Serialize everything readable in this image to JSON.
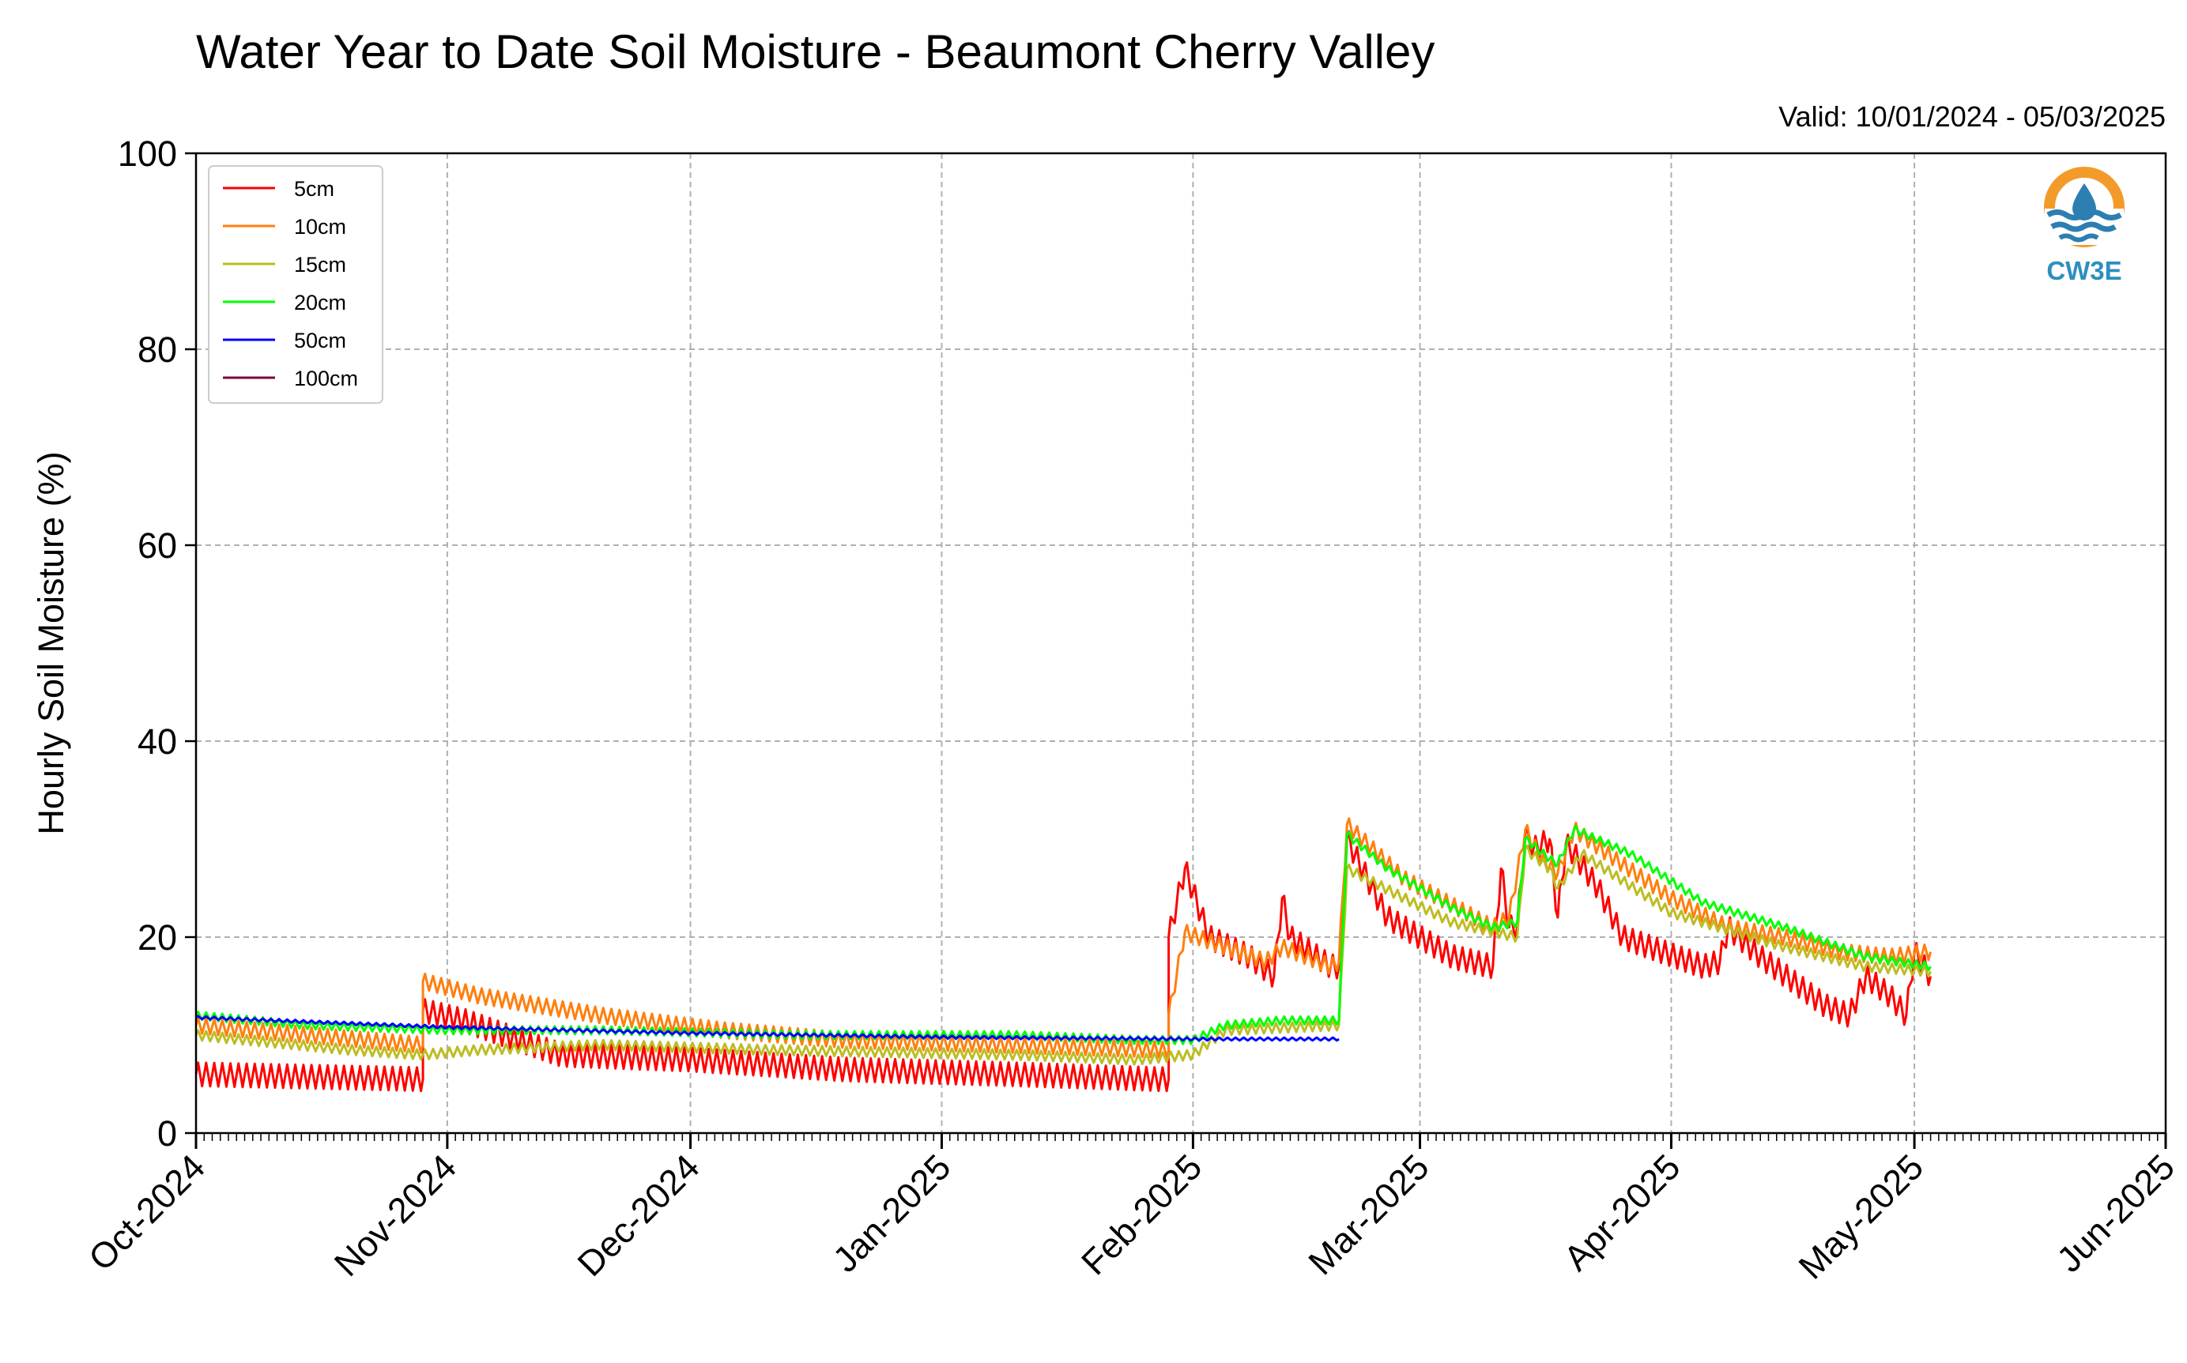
{
  "title": "Water Year to Date Soil Moisture - Beaumont Cherry Valley",
  "valid": "Valid: 10/01/2024 - 05/03/2025",
  "logo_text": "CW3E",
  "logo_colors": {
    "ring": "#f39b2a",
    "waves": "#2c7fb0",
    "text": "#2c8fbf"
  },
  "chart_data": {
    "type": "line",
    "title": "Water Year to Date Soil Moisture - Beaumont Cherry Valley",
    "ylabel": "Hourly Soil Moisture (%)",
    "xlabel": "",
    "ylim": [
      0,
      100
    ],
    "yticks": [
      0,
      20,
      40,
      60,
      80,
      100
    ],
    "xlim": [
      "2024-10-01",
      "2025-06-01"
    ],
    "xticks": [
      {
        "date": "2024-10-01",
        "label": "Oct-2024"
      },
      {
        "date": "2024-11-01",
        "label": "Nov-2024"
      },
      {
        "date": "2024-12-01",
        "label": "Dec-2024"
      },
      {
        "date": "2025-01-01",
        "label": "Jan-2025"
      },
      {
        "date": "2025-02-01",
        "label": "Feb-2025"
      },
      {
        "date": "2025-03-01",
        "label": "Mar-2025"
      },
      {
        "date": "2025-04-01",
        "label": "Apr-2025"
      },
      {
        "date": "2025-05-01",
        "label": "May-2025"
      },
      {
        "date": "2025-06-01",
        "label": "Jun-2025"
      }
    ],
    "grid": true,
    "legend_position": "top-left",
    "series": [
      {
        "name": "5cm",
        "color": "#ff0000",
        "diurnal_amplitude": 1.2,
        "points": [
          [
            "2024-10-01",
            6.0
          ],
          [
            "2024-10-29",
            5.5
          ],
          [
            "2024-10-29",
            12.5
          ],
          [
            "2024-11-03",
            11.5
          ],
          [
            "2024-11-15",
            8.0
          ],
          [
            "2024-12-01",
            7.5
          ],
          [
            "2024-12-20",
            6.5
          ],
          [
            "2025-01-10",
            6.0
          ],
          [
            "2025-01-28",
            5.5
          ],
          [
            "2025-01-29",
            5.5
          ],
          [
            "2025-01-29",
            20.0
          ],
          [
            "2025-01-31",
            27.0
          ],
          [
            "2025-02-03",
            20.0
          ],
          [
            "2025-02-08",
            18.0
          ],
          [
            "2025-02-11",
            16.0
          ],
          [
            "2025-02-12",
            24.0
          ],
          [
            "2025-02-13",
            20.0
          ],
          [
            "2025-02-18",
            17.0
          ],
          [
            "2025-02-19",
            17.0
          ],
          [
            "2025-02-20",
            30.0
          ],
          [
            "2025-02-25",
            22.0
          ],
          [
            "2025-03-05",
            18.0
          ],
          [
            "2025-03-10",
            17.0
          ],
          [
            "2025-03-11",
            27.0
          ],
          [
            "2025-03-12",
            21.0
          ],
          [
            "2025-03-13",
            21.0
          ],
          [
            "2025-03-14",
            30.5
          ],
          [
            "2025-03-15",
            29.0
          ],
          [
            "2025-03-17",
            30.0
          ],
          [
            "2025-03-18",
            22.0
          ],
          [
            "2025-03-19",
            29.5
          ],
          [
            "2025-03-20",
            28.5
          ],
          [
            "2025-03-23",
            25.0
          ],
          [
            "2025-03-26",
            20.0
          ],
          [
            "2025-04-05",
            17.0
          ],
          [
            "2025-04-07",
            17.5
          ],
          [
            "2025-04-08",
            21.0
          ],
          [
            "2025-04-12",
            18.0
          ],
          [
            "2025-04-20",
            13.0
          ],
          [
            "2025-04-23",
            12.0
          ],
          [
            "2025-04-25",
            16.0
          ],
          [
            "2025-04-28",
            14.0
          ],
          [
            "2025-04-30",
            12.0
          ],
          [
            "2025-05-01",
            18.5
          ],
          [
            "2025-05-03",
            16.0
          ]
        ]
      },
      {
        "name": "10cm",
        "color": "#ff7f0e",
        "diurnal_amplitude": 0.8,
        "points": [
          [
            "2024-10-01",
            11.0
          ],
          [
            "2024-10-29",
            9.0
          ],
          [
            "2024-10-29",
            15.5
          ],
          [
            "2024-11-05",
            14.0
          ],
          [
            "2024-11-20",
            12.0
          ],
          [
            "2024-12-05",
            10.5
          ],
          [
            "2024-12-20",
            9.5
          ],
          [
            "2025-01-10",
            9.0
          ],
          [
            "2025-01-29",
            8.5
          ],
          [
            "2025-01-29",
            12.0
          ],
          [
            "2025-01-31",
            20.5
          ],
          [
            "2025-02-05",
            19.0
          ],
          [
            "2025-02-10",
            17.5
          ],
          [
            "2025-02-12",
            19.0
          ],
          [
            "2025-02-18",
            17.0
          ],
          [
            "2025-02-19",
            17.5
          ],
          [
            "2025-02-20",
            31.5
          ],
          [
            "2025-02-27",
            26.0
          ],
          [
            "2025-03-10",
            21.0
          ],
          [
            "2025-03-12",
            22.0
          ],
          [
            "2025-03-14",
            31.0
          ],
          [
            "2025-03-16",
            28.0
          ],
          [
            "2025-03-18",
            26.5
          ],
          [
            "2025-03-20",
            31.0
          ],
          [
            "2025-03-25",
            28.0
          ],
          [
            "2025-04-01",
            24.0
          ],
          [
            "2025-04-08",
            21.0
          ],
          [
            "2025-04-15",
            20.0
          ],
          [
            "2025-04-22",
            18.5
          ],
          [
            "2025-04-28",
            18.0
          ],
          [
            "2025-05-03",
            18.5
          ]
        ]
      },
      {
        "name": "15cm",
        "color": "#bcbd22",
        "diurnal_amplitude": 0.5,
        "points": [
          [
            "2024-10-01",
            10.0
          ],
          [
            "2024-10-20",
            8.5
          ],
          [
            "2024-10-29",
            8.0
          ],
          [
            "2024-11-05",
            8.5
          ],
          [
            "2024-11-20",
            9.0
          ],
          [
            "2024-12-10",
            8.5
          ],
          [
            "2025-01-10",
            8.0
          ],
          [
            "2025-01-25",
            7.5
          ],
          [
            "2025-02-01",
            8.0
          ],
          [
            "2025-02-05",
            10.5
          ],
          [
            "2025-02-19",
            11.0
          ],
          [
            "2025-02-20",
            27.0
          ],
          [
            "2025-02-27",
            24.0
          ],
          [
            "2025-03-05",
            21.5
          ],
          [
            "2025-03-13",
            20.0
          ],
          [
            "2025-03-14",
            29.0
          ],
          [
            "2025-03-17",
            27.0
          ],
          [
            "2025-03-18",
            25.0
          ],
          [
            "2025-03-21",
            28.5
          ],
          [
            "2025-04-01",
            22.5
          ],
          [
            "2025-04-15",
            19.0
          ],
          [
            "2025-04-25",
            17.0
          ],
          [
            "2025-05-03",
            16.5
          ]
        ]
      },
      {
        "name": "20cm",
        "color": "#00ff00",
        "diurnal_amplitude": 0.4,
        "points": [
          [
            "2024-10-01",
            12.0
          ],
          [
            "2024-10-15",
            11.0
          ],
          [
            "2024-11-01",
            10.5
          ],
          [
            "2024-11-20",
            10.5
          ],
          [
            "2024-12-15",
            10.0
          ],
          [
            "2025-01-10",
            10.0
          ],
          [
            "2025-01-25",
            9.5
          ],
          [
            "2025-02-01",
            9.5
          ],
          [
            "2025-02-05",
            11.0
          ],
          [
            "2025-02-12",
            11.5
          ],
          [
            "2025-02-19",
            11.5
          ],
          [
            "2025-02-20",
            30.5
          ],
          [
            "2025-02-25",
            27.0
          ],
          [
            "2025-03-05",
            23.0
          ],
          [
            "2025-03-10",
            21.0
          ],
          [
            "2025-03-13",
            21.5
          ],
          [
            "2025-03-14",
            30.0
          ],
          [
            "2025-03-17",
            28.0
          ],
          [
            "2025-03-18",
            27.5
          ],
          [
            "2025-03-20",
            31.0
          ],
          [
            "2025-03-27",
            28.5
          ],
          [
            "2025-04-05",
            23.5
          ],
          [
            "2025-04-15",
            21.0
          ],
          [
            "2025-04-25",
            18.0
          ],
          [
            "2025-05-03",
            17.0
          ]
        ]
      },
      {
        "name": "50cm",
        "color": "#0000ff",
        "diurnal_amplitude": 0.15,
        "points": [
          [
            "2024-10-01",
            11.8
          ],
          [
            "2024-11-01",
            10.8
          ],
          [
            "2024-12-01",
            10.2
          ],
          [
            "2025-01-01",
            9.8
          ],
          [
            "2025-02-01",
            9.6
          ],
          [
            "2025-02-19",
            9.6
          ]
        ]
      },
      {
        "name": "100cm",
        "color": "#800040",
        "diurnal_amplitude": 0,
        "points": []
      }
    ]
  }
}
